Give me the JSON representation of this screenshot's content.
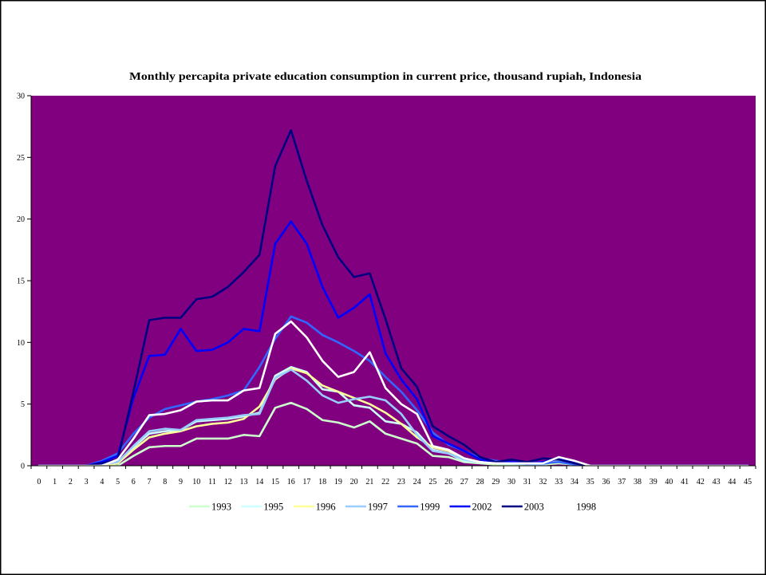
{
  "chart_data": {
    "type": "line",
    "title": "Monthly percapita private education consumption in current price, thousand rupiah, Indonesia",
    "categories": [
      "0",
      "1",
      "2",
      "3",
      "4",
      "5",
      "6",
      "7",
      "8",
      "9",
      "10",
      "11",
      "12",
      "13",
      "14",
      "15",
      "16",
      "17",
      "18",
      "19",
      "20",
      "21",
      "22",
      "23",
      "24",
      "25",
      "26",
      "27",
      "28",
      "29",
      "30",
      "31",
      "32",
      "33",
      "34",
      "35",
      "36",
      "37",
      "38",
      "39",
      "40",
      "41",
      "42",
      "43",
      "44",
      "45"
    ],
    "ylim": [
      0,
      30
    ],
    "yticks": [
      0,
      5,
      10,
      15,
      20,
      25,
      30
    ],
    "grid": false,
    "legend": "bottom",
    "plot_background": "#800080",
    "series": [
      {
        "name": "1993",
        "color": "#CCFFCC",
        "values": [
          0,
          0,
          0,
          0,
          0,
          0,
          0.8,
          1.5,
          1.6,
          1.6,
          2.2,
          2.2,
          2.2,
          2.5,
          2.4,
          4.7,
          5.1,
          4.6,
          3.7,
          3.5,
          3.1,
          3.6,
          2.6,
          2.2,
          1.8,
          0.8,
          0.7,
          0.3,
          0.2,
          0.1,
          0.1,
          0.1,
          0.1,
          0.2,
          0.1,
          0,
          0,
          0,
          0,
          0,
          0,
          0,
          0,
          0,
          0,
          0
        ]
      },
      {
        "name": "1995",
        "color": "#CCFFFF",
        "values": [
          0,
          0,
          0,
          0,
          0,
          0.2,
          1.5,
          2.6,
          2.8,
          2.9,
          3.6,
          3.7,
          3.8,
          4.0,
          4.3,
          7.3,
          8.0,
          7.6,
          6.2,
          6.0,
          4.9,
          4.7,
          3.6,
          3.4,
          2.7,
          1.3,
          1.0,
          0.4,
          0.3,
          0.2,
          0.2,
          0.1,
          0.1,
          0.3,
          0.1,
          0,
          0,
          0,
          0,
          0,
          0,
          0,
          0,
          0,
          0,
          0
        ]
      },
      {
        "name": "1996",
        "color": "#FFFF99",
        "values": [
          0,
          0,
          0,
          0,
          0,
          0.2,
          1.3,
          2.3,
          2.6,
          2.8,
          3.2,
          3.4,
          3.5,
          3.8,
          4.8,
          7.0,
          7.9,
          7.5,
          6.5,
          6.0,
          5.5,
          5.0,
          4.3,
          3.4,
          2.3,
          1.5,
          1.2,
          0.6,
          0.3,
          0.2,
          0.2,
          0.1,
          0.1,
          0.3,
          0.1,
          0,
          0,
          0,
          0,
          0,
          0,
          0,
          0,
          0,
          0,
          0
        ]
      },
      {
        "name": "1997",
        "color": "#99CCFF",
        "values": [
          0,
          0,
          0,
          0,
          0.1,
          0.3,
          1.6,
          2.8,
          3.0,
          2.9,
          3.7,
          3.8,
          3.9,
          4.1,
          4.2,
          7.1,
          7.8,
          6.9,
          5.7,
          5.1,
          5.4,
          5.6,
          5.3,
          4.2,
          2.5,
          1.2,
          1.0,
          0.5,
          0.3,
          0.2,
          0.2,
          0.1,
          0.1,
          0.4,
          0.2,
          0,
          0,
          0,
          0,
          0,
          0,
          0,
          0,
          0,
          0,
          0
        ]
      },
      {
        "name": "1999",
        "color": "#3366FF",
        "values": [
          0,
          0,
          0,
          0,
          0.4,
          1.0,
          2.6,
          3.9,
          4.6,
          4.9,
          5.2,
          5.4,
          5.7,
          6.1,
          8.0,
          10.3,
          12.1,
          11.6,
          10.6,
          10.0,
          9.3,
          8.5,
          7.2,
          6.0,
          4.5,
          2.7,
          1.7,
          1.2,
          0.6,
          0.4,
          0.3,
          0.2,
          0.2,
          0.3,
          0.1,
          0,
          0,
          0,
          0,
          0,
          0,
          0,
          0,
          0,
          0,
          0
        ]
      },
      {
        "name": "2002",
        "color": "#0000FF",
        "values": [
          0,
          0,
          0,
          0,
          0.3,
          0.8,
          5.5,
          8.9,
          9.0,
          11.1,
          9.3,
          9.4,
          10.0,
          11.1,
          10.9,
          18.0,
          19.8,
          18.0,
          14.5,
          12.0,
          12.8,
          13.9,
          9.1,
          7.0,
          5.4,
          2.4,
          1.8,
          1.2,
          0.5,
          0.3,
          0.3,
          0.2,
          0.3,
          0.6,
          0.2,
          0,
          0,
          0,
          0,
          0,
          0,
          0,
          0,
          0,
          0,
          0
        ]
      },
      {
        "name": "2003",
        "color": "#000080",
        "values": [
          0,
          0,
          0,
          0,
          0.2,
          0.5,
          6.0,
          11.8,
          12.0,
          12.0,
          13.5,
          13.7,
          14.5,
          15.7,
          17.1,
          24.3,
          27.2,
          23.1,
          19.5,
          16.9,
          15.3,
          15.6,
          11.9,
          7.9,
          6.4,
          3.2,
          2.4,
          1.7,
          0.7,
          0.3,
          0.5,
          0.3,
          0.6,
          0.5,
          0.2,
          0,
          0,
          0,
          0,
          0,
          0,
          0,
          0,
          0,
          0,
          0
        ]
      },
      {
        "name": "1998",
        "color": "#FFFFFF",
        "values": [
          0,
          0,
          0,
          0,
          0,
          0.5,
          2.2,
          4.1,
          4.2,
          4.5,
          5.2,
          5.3,
          5.3,
          6.1,
          6.3,
          10.7,
          11.7,
          10.4,
          8.5,
          7.2,
          7.6,
          9.2,
          6.3,
          5.0,
          4.2,
          1.6,
          1.3,
          0.6,
          0.3,
          0.2,
          0.2,
          0.2,
          0.2,
          0.7,
          0.4,
          0,
          0,
          0,
          0,
          0,
          0,
          0,
          0,
          0,
          0,
          0
        ]
      }
    ]
  }
}
